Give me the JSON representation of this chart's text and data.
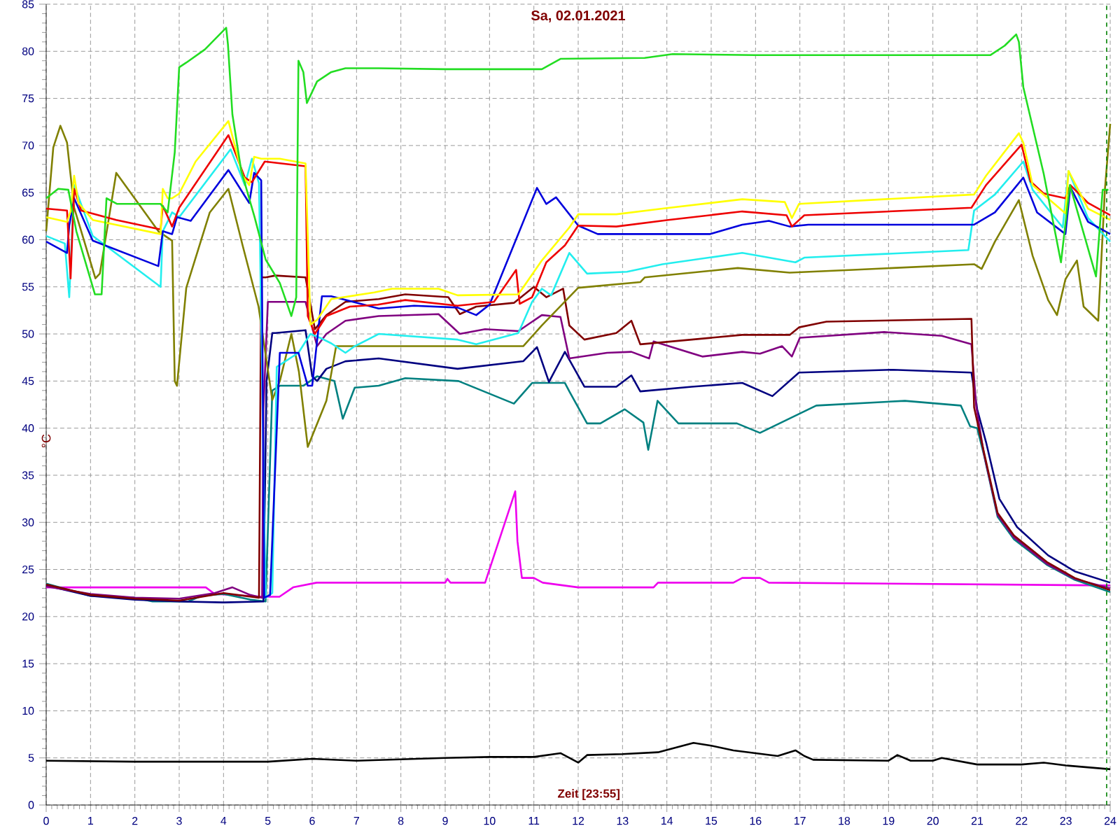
{
  "chart_data": {
    "type": "line",
    "title": "Sa, 02.01.2021",
    "xlabel": "Zeit [23:55]",
    "ylabel": "°C",
    "xlim": [
      0,
      24
    ],
    "ylim": [
      0,
      85
    ],
    "xticks": [
      0,
      1,
      2,
      3,
      4,
      5,
      6,
      7,
      8,
      9,
      10,
      11,
      12,
      13,
      14,
      15,
      16,
      17,
      18,
      19,
      20,
      21,
      22,
      23,
      24
    ],
    "yticks": [
      0,
      5,
      10,
      15,
      20,
      25,
      30,
      35,
      40,
      45,
      50,
      55,
      60,
      65,
      70,
      75,
      80,
      85
    ],
    "grid": true,
    "ref_lines": [
      {
        "axis": "x",
        "value": 23.92,
        "color": "#008000",
        "line_style": "dashed"
      }
    ],
    "series": [
      {
        "color": "#000000",
        "x": [
          0,
          2,
          3.5,
          5,
          6,
          7,
          9,
          10,
          11,
          11.6,
          12,
          12.2,
          13,
          13.8,
          14.2,
          14.6,
          15,
          15.5,
          16,
          16.5,
          16.9,
          17.1,
          17.3,
          19,
          19.2,
          19.5,
          20,
          20.2,
          21,
          22,
          22.5,
          23,
          24
        ],
        "values": [
          4.7,
          4.6,
          4.6,
          4.6,
          4.9,
          4.7,
          5.0,
          5.1,
          5.1,
          5.5,
          4.5,
          5.3,
          5.4,
          5.6,
          6.1,
          6.6,
          6.3,
          5.8,
          5.5,
          5.2,
          5.8,
          5.2,
          4.8,
          4.7,
          5.3,
          4.7,
          4.7,
          5.0,
          4.3,
          4.3,
          4.5,
          4.2,
          3.8
        ]
      },
      {
        "color": "#ee00ee",
        "x": [
          0,
          3.6,
          3.8,
          4.9,
          5.26,
          5.57,
          6.1,
          9.0,
          9.05,
          9.12,
          9.9,
          10.58,
          10.63,
          10.73,
          11.0,
          11.2,
          12.0,
          13.7,
          13.8,
          15.5,
          15.7,
          16.1,
          16.3,
          24
        ],
        "values": [
          23.1,
          23.1,
          22.4,
          22.1,
          22.1,
          23.1,
          23.6,
          23.6,
          24.0,
          23.6,
          23.6,
          33.3,
          28.0,
          24.1,
          24.1,
          23.6,
          23.1,
          23.1,
          23.6,
          23.6,
          24.1,
          24.1,
          23.6,
          23.3
        ]
      },
      {
        "color": "#008080",
        "x": [
          0,
          1,
          2,
          2.4,
          3.2,
          3.5,
          4.0,
          4.6,
          4.95,
          5.1,
          5.27,
          5.8,
          6.11,
          6.5,
          6.69,
          6.96,
          7.5,
          8.1,
          9.3,
          10.55,
          10.96,
          11.7,
          11.8,
          12.2,
          12.5,
          13.05,
          13.47,
          13.58,
          13.79,
          14.26,
          15.58,
          16.1,
          17.37,
          19.37,
          20.63,
          20.84,
          21.0,
          21.15,
          21.46,
          21.83,
          22.57,
          23.2,
          24
        ],
        "values": [
          23.5,
          22.2,
          22.0,
          21.6,
          21.6,
          22.2,
          22.4,
          21.8,
          21.6,
          44,
          44.5,
          44.5,
          45.5,
          45,
          41.0,
          44.3,
          44.5,
          45.3,
          45.0,
          42.6,
          44.8,
          44.8,
          43.9,
          40.5,
          40.5,
          42.0,
          40.6,
          37.7,
          42.9,
          40.5,
          40.5,
          39.5,
          42.4,
          42.9,
          42.4,
          40.2,
          40.0,
          37.2,
          30.6,
          28.2,
          25.5,
          23.9,
          22.6
        ]
      },
      {
        "color": "#000080",
        "x": [
          0,
          1,
          2,
          3,
          4,
          4.9,
          4.97,
          5.1,
          5.17,
          5.85,
          6.0,
          6.11,
          6.32,
          6.75,
          7.5,
          9.28,
          10.76,
          11.07,
          11.34,
          11.7,
          12.14,
          12.86,
          13.2,
          13.4,
          14.56,
          15.7,
          16.38,
          16.98,
          19.1,
          20.87,
          21.0,
          21.2,
          21.5,
          21.9,
          22.6,
          23.2,
          24
        ],
        "values": [
          23.3,
          22.2,
          21.8,
          21.6,
          21.5,
          21.6,
          45,
          50.1,
          50.1,
          50.4,
          45.5,
          45.0,
          46.3,
          47.1,
          47.4,
          46.3,
          47.1,
          48.6,
          44.9,
          48.1,
          44.4,
          44.4,
          45.6,
          43.9,
          44.4,
          44.8,
          43.4,
          45.9,
          46.2,
          45.9,
          42.0,
          38.5,
          32.5,
          29.5,
          26.5,
          24.8,
          23.6
        ]
      },
      {
        "color": "#800080",
        "x": [
          0,
          1,
          2,
          3,
          3.8,
          4.2,
          4.6,
          4.87,
          4.9,
          5.0,
          5.85,
          6.11,
          6.32,
          6.75,
          7.5,
          8.85,
          9.33,
          9.9,
          10.65,
          11.18,
          11.6,
          11.8,
          12.65,
          13.2,
          13.6,
          13.7,
          14.8,
          15.7,
          16.1,
          16.6,
          16.82,
          17.0,
          18.9,
          20.2,
          20.87,
          20.98,
          21.15,
          21.46,
          21.83,
          22.57,
          23.2,
          24
        ],
        "values": [
          23.2,
          22.4,
          22.0,
          21.9,
          22.5,
          23.1,
          22.3,
          22.0,
          42,
          53.4,
          53.4,
          48.7,
          50,
          51.4,
          51.9,
          52.1,
          50,
          50.5,
          50.3,
          52.0,
          51.8,
          47.4,
          48.0,
          48.1,
          47.4,
          49.2,
          47.6,
          48.1,
          47.9,
          48.7,
          47.6,
          49.6,
          50.2,
          49.8,
          48.9,
          42.2,
          37.3,
          30.8,
          28.4,
          25.6,
          24.0,
          23.0
        ]
      },
      {
        "color": "#800000",
        "x": [
          0,
          1,
          2,
          3,
          4,
          4.8,
          4.85,
          4.95,
          5.17,
          5.85,
          6.06,
          6.32,
          6.75,
          7.5,
          8.1,
          9.07,
          9.33,
          9.7,
          10.55,
          11.0,
          11.28,
          11.66,
          11.8,
          12.14,
          12.86,
          13.2,
          13.4,
          14.56,
          15.7,
          16.77,
          16.98,
          17.6,
          20.87,
          20.93,
          21.15,
          21.46,
          21.83,
          22.57,
          23.2,
          24
        ],
        "values": [
          23.4,
          22.3,
          21.9,
          21.7,
          22.5,
          22.0,
          56,
          56,
          56.2,
          56,
          50.5,
          52,
          53.4,
          53.7,
          54.2,
          53.9,
          52.1,
          52.9,
          53.3,
          55.0,
          53.9,
          54.8,
          50.9,
          49.4,
          50.1,
          51.4,
          48.9,
          49.4,
          49.9,
          49.9,
          50.7,
          51.3,
          51.6,
          42.2,
          37.5,
          31.0,
          28.6,
          25.8,
          24.1,
          22.8
        ]
      },
      {
        "color": "#808000",
        "x": [
          0,
          0.16,
          0.32,
          0.47,
          0.63,
          1.11,
          1.21,
          1.58,
          2.53,
          2.84,
          2.9,
          2.95,
          3.16,
          3.69,
          4.11,
          4.43,
          4.79,
          5.1,
          5.27,
          5.53,
          5.7,
          5.9,
          6.32,
          6.54,
          7.5,
          9.5,
          10.76,
          11.18,
          12.0,
          13.4,
          13.5,
          15.6,
          16.77,
          18.2,
          20.93,
          21.1,
          21.4,
          21.94,
          22.25,
          22.6,
          22.8,
          22.99,
          23.25,
          23.4,
          23.73,
          23.88,
          24
        ],
        "values": [
          60.9,
          69.8,
          72.1,
          70.3,
          63.4,
          55.9,
          56.4,
          67.1,
          60.9,
          59.9,
          45.0,
          44.5,
          54.9,
          62.9,
          65.4,
          59.4,
          52.9,
          43.0,
          45,
          50.0,
          46.0,
          38.0,
          42.9,
          48.7,
          48.7,
          48.7,
          48.7,
          50.9,
          54.9,
          55.5,
          56.0,
          57.0,
          56.5,
          56.8,
          57.4,
          56.9,
          59.8,
          64.2,
          58.3,
          53.6,
          52.0,
          55.8,
          57.8,
          52.9,
          51.4,
          65.3,
          72.3
        ]
      },
      {
        "color": "#22eeee",
        "x": [
          0,
          0.42,
          0.52,
          0.63,
          1.05,
          2.58,
          2.63,
          2.84,
          3.0,
          4.16,
          4.48,
          4.64,
          4.8,
          4.95,
          5.1,
          5.2,
          5.69,
          5.96,
          6.22,
          6.43,
          6.75,
          6.96,
          7.5,
          9.28,
          9.7,
          10.65,
          10.96,
          11.18,
          11.39,
          11.8,
          12.2,
          13.1,
          13.9,
          15.7,
          16.9,
          17.1,
          20.8,
          20.93,
          21.4,
          22.04,
          22.25,
          22.93,
          23.06,
          23.5,
          24
        ],
        "values": [
          60.4,
          59.6,
          53.9,
          65.8,
          60.4,
          55.0,
          60.9,
          62.9,
          62.4,
          69.6,
          65.8,
          68.6,
          66,
          22,
          22.5,
          46.5,
          48.0,
          50.0,
          49.5,
          49.0,
          48.0,
          48.7,
          50.0,
          49.4,
          48.9,
          50.1,
          53.4,
          54.8,
          54.1,
          58.6,
          56.4,
          56.6,
          57.4,
          58.6,
          57.6,
          58.1,
          58.9,
          63.1,
          64.8,
          68.3,
          65.3,
          61.3,
          67.3,
          62.3,
          59.8
        ]
      },
      {
        "color": "#0000dd",
        "x": [
          0,
          0.47,
          0.52,
          0.63,
          1.05,
          2.53,
          2.63,
          2.84,
          2.95,
          3.26,
          4.11,
          4.58,
          4.69,
          4.85,
          4.92,
          5.05,
          5.27,
          5.69,
          5.9,
          6.0,
          6.22,
          6.43,
          7.5,
          8.3,
          9.28,
          9.7,
          10.0,
          11.07,
          11.28,
          11.5,
          12.0,
          12.44,
          14.97,
          15.7,
          16.3,
          16.77,
          17.19,
          20.93,
          21.4,
          22.04,
          22.35,
          22.99,
          23.1,
          23.5,
          24
        ],
        "values": [
          59.8,
          58.6,
          61.5,
          64.4,
          59.9,
          57.2,
          60.9,
          60.6,
          62.4,
          62.0,
          67.4,
          63.9,
          67.1,
          66.3,
          22,
          22.3,
          48.0,
          48.0,
          44.5,
          44.5,
          54.0,
          54.0,
          52.7,
          53.0,
          52.8,
          52.0,
          53.1,
          65.5,
          63.8,
          64.5,
          61.5,
          60.6,
          60.6,
          61.6,
          62.0,
          61.4,
          61.6,
          61.6,
          62.9,
          66.6,
          62.9,
          60.6,
          65.6,
          61.9,
          60.6
        ]
      },
      {
        "color": "#ee0000",
        "x": [
          0,
          0.47,
          0.55,
          0.63,
          0.79,
          1.58,
          2.58,
          2.63,
          2.84,
          3.0,
          4.11,
          4.48,
          4.64,
          4.93,
          5.85,
          5.9,
          6.06,
          6.32,
          6.85,
          7.48,
          8.1,
          9.28,
          10.1,
          10.6,
          10.68,
          10.96,
          11.28,
          11.7,
          12.0,
          12.86,
          14.03,
          15.7,
          16.7,
          16.82,
          17.1,
          20.87,
          21.2,
          22.0,
          22.2,
          22.5,
          22.99,
          23.1,
          23.5,
          24
        ],
        "values": [
          63.3,
          63.1,
          55.9,
          65.4,
          63.1,
          62.1,
          61.1,
          63.6,
          61.4,
          63.4,
          71.1,
          66.6,
          66.1,
          68.3,
          67.8,
          51.9,
          50.0,
          51.9,
          52.9,
          53.1,
          53.6,
          53.0,
          53.4,
          56.8,
          53.2,
          53.9,
          57.6,
          59.4,
          61.5,
          61.4,
          62.1,
          63.0,
          62.6,
          61.4,
          62.6,
          63.4,
          65.8,
          70.1,
          66.2,
          64.9,
          64.4,
          65.8,
          63.9,
          62.6
        ]
      },
      {
        "color": "#ffff00",
        "x": [
          0,
          0.47,
          0.55,
          0.63,
          0.73,
          1.05,
          2.58,
          2.63,
          2.74,
          2.84,
          3.0,
          3.37,
          4.11,
          4.43,
          4.58,
          4.69,
          4.85,
          5.27,
          5.85,
          5.96,
          6.11,
          6.43,
          7.4,
          7.8,
          8.85,
          9.28,
          10.65,
          11.18,
          11.8,
          12.0,
          12.86,
          13.9,
          15.7,
          16.66,
          16.82,
          16.98,
          18.9,
          20.93,
          21.2,
          21.94,
          22.04,
          22.25,
          22.99,
          23.06,
          23.5,
          24
        ],
        "values": [
          62.4,
          61.9,
          63,
          66.8,
          63.9,
          62.1,
          60.6,
          65.4,
          64.4,
          64.4,
          64.9,
          68.3,
          72.6,
          66.8,
          65.8,
          68.8,
          68.6,
          68.6,
          68.1,
          51.0,
          51.5,
          53.7,
          54.4,
          54.8,
          54.8,
          54.1,
          54.2,
          57.8,
          61.3,
          62.7,
          62.7,
          63.3,
          64.3,
          64.0,
          62.3,
          63.8,
          64.3,
          64.8,
          66.8,
          71.3,
          70.3,
          65.8,
          62.8,
          67.3,
          63.3,
          62.1
        ]
      },
      {
        "color": "#22dd22",
        "x": [
          0,
          0.27,
          0.5,
          0.68,
          1.1,
          1.25,
          1.36,
          1.6,
          2.58,
          2.74,
          2.9,
          3.0,
          3.16,
          3.58,
          4.06,
          4.1,
          4.2,
          4.4,
          4.7,
          4.95,
          5.27,
          5.53,
          5.64,
          5.69,
          5.8,
          5.88,
          6.11,
          6.43,
          6.75,
          7.5,
          9,
          11.18,
          11.6,
          13.5,
          14.13,
          16,
          18,
          20,
          21.3,
          21.62,
          21.88,
          21.94,
          22.04,
          22.5,
          22.89,
          23.09,
          23.68,
          23.83,
          23.96
        ],
        "values": [
          64.4,
          65.4,
          65.3,
          60.9,
          54.2,
          54.2,
          64.4,
          63.8,
          63.8,
          62.9,
          69.3,
          78.3,
          78.8,
          80.2,
          82.5,
          80.7,
          73.3,
          67.3,
          62.4,
          57.9,
          55.4,
          51.9,
          53.9,
          79.0,
          77.8,
          74.5,
          76.8,
          77.8,
          78.2,
          78.2,
          78.1,
          78.1,
          79.2,
          79.3,
          79.7,
          79.6,
          79.6,
          79.6,
          79.6,
          80.6,
          81.8,
          81.0,
          76.2,
          67,
          57.6,
          65.8,
          56.1,
          65.3,
          65.3
        ]
      }
    ]
  }
}
